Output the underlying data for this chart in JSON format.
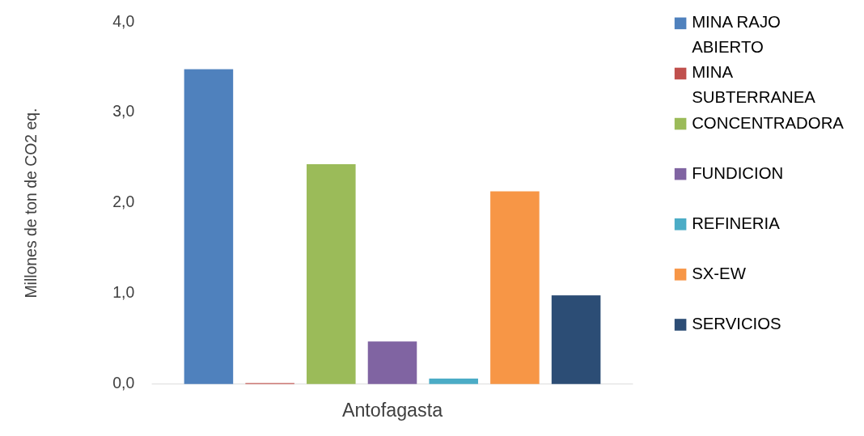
{
  "chart_data": {
    "type": "bar",
    "ylabel": "Millones de ton de CO2 eq.",
    "categories": [
      "Antofagasta"
    ],
    "series": [
      {
        "name": "MINA RAJO ABIERTO",
        "color": "#4f81bd",
        "values": [
          3.48
        ]
      },
      {
        "name": "MINA SUBTERRANEA",
        "color": "#c0504d",
        "values": [
          0.01
        ]
      },
      {
        "name": "CONCENTRADORA",
        "color": "#9bbb59",
        "values": [
          2.43
        ]
      },
      {
        "name": "FUNDICION",
        "color": "#8064a2",
        "values": [
          0.47
        ]
      },
      {
        "name": "REFINERIA",
        "color": "#4bacc6",
        "values": [
          0.06
        ]
      },
      {
        "name": "SX-EW",
        "color": "#f79646",
        "values": [
          2.13
        ]
      },
      {
        "name": "SERVICIOS",
        "color": "#2c4d75",
        "values": [
          0.98
        ]
      }
    ],
    "ylim": [
      0,
      4
    ],
    "yticks": [
      {
        "value": 0,
        "label": "0,0"
      },
      {
        "value": 1,
        "label": "1,0"
      },
      {
        "value": 2,
        "label": "2,0"
      },
      {
        "value": 3,
        "label": "3,0"
      },
      {
        "value": 4,
        "label": "4,0"
      }
    ],
    "grid": false,
    "legend": "right"
  }
}
